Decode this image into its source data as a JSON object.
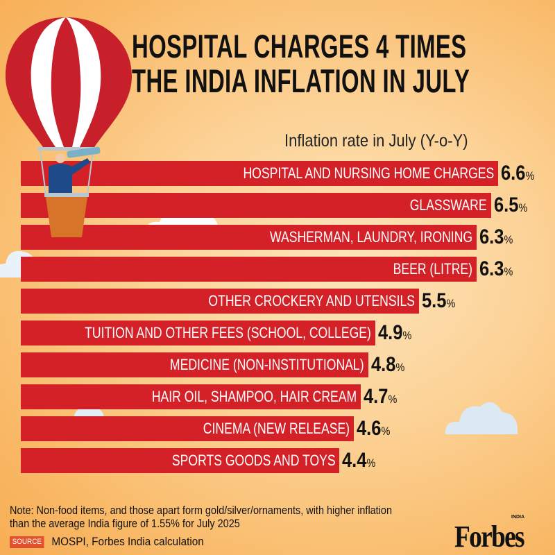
{
  "title_line1": "HOSPITAL CHARGES 4 TIMES",
  "title_line2": "THE INDIA INFLATION IN JULY",
  "chart_data": {
    "type": "bar",
    "orientation": "horizontal",
    "title": "HOSPITAL CHARGES 4 TIMES THE INDIA INFLATION IN JULY",
    "subtitle": "Inflation rate in July (Y-o-Y)",
    "unit": "%",
    "categories": [
      "HOSPITAL AND NURSING HOME CHARGES",
      "GLASSWARE",
      "WASHERMAN, LAUNDRY, IRONING",
      "BEER (LITRE)",
      "OTHER CROCKERY AND UTENSILS",
      "TUITION AND OTHER FEES (SCHOOL, COLLEGE)",
      "MEDICINE (NON-INSTITUTIONAL)",
      "HAIR OIL, SHAMPOO, HAIR CREAM",
      "CINEMA (NEW RELEASE)",
      "SPORTS GOODS AND TOYS"
    ],
    "values": [
      6.6,
      6.5,
      6.3,
      6.3,
      5.5,
      4.9,
      4.8,
      4.7,
      4.6,
      4.4
    ],
    "value_labels": [
      "6.6",
      "6.5",
      "6.3",
      "6.3",
      "5.5",
      "4.9",
      "4.8",
      "4.7",
      "4.6",
      "4.4"
    ],
    "bar_color": "#d42128",
    "grid": false
  },
  "note": "Note: Non-food items, and those apart form gold/silver/ornaments, with higher inflation than the average India figure of 1.55% for July 2025",
  "source_badge": "SOURCE",
  "source": "MOSPI, Forbes India calculation",
  "logo": "Forbes",
  "logo_sub": "INDIA"
}
